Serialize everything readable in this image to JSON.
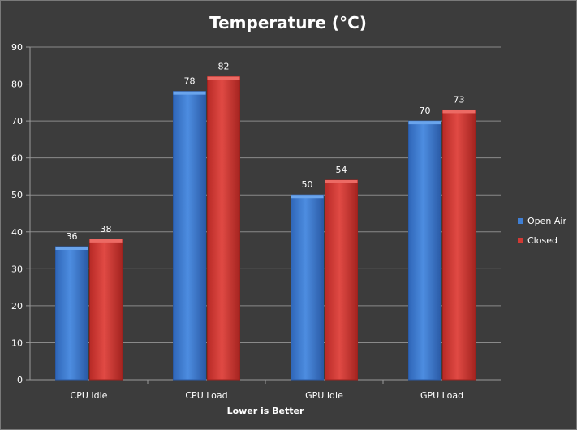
{
  "chart_data": {
    "type": "bar",
    "title": "Temperature (°C)",
    "xlabel": "Lower is Better",
    "ylabel": "",
    "categories": [
      "CPU Idle",
      "CPU Load",
      "GPU Idle",
      "GPU Load"
    ],
    "series": [
      {
        "name": "Open Air",
        "color": "#3f7fd4",
        "values": [
          36,
          78,
          50,
          70
        ]
      },
      {
        "name": "Closed",
        "color": "#d23a34",
        "values": [
          38,
          82,
          54,
          73
        ]
      }
    ],
    "ylim": [
      0,
      90
    ],
    "yticks": [
      0,
      10,
      20,
      30,
      40,
      50,
      60,
      70,
      80,
      90
    ],
    "grid": true,
    "legend_position": "right",
    "data_labels": true
  }
}
